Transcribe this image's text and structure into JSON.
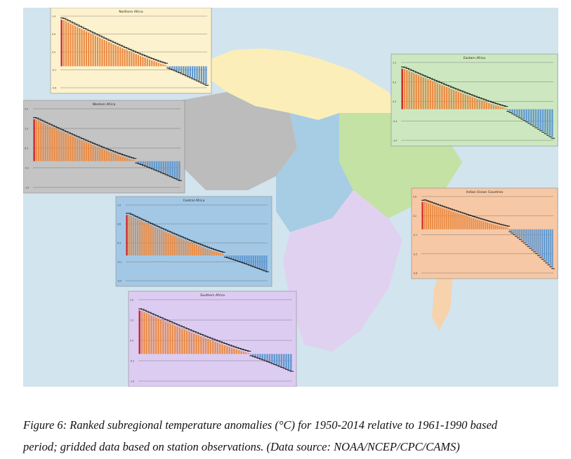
{
  "figure": {
    "background": "#d2e4ee",
    "regions": {
      "northern": "#fbeeb8",
      "western": "#bcbcbc",
      "central": "#a7cde4",
      "eastern": "#c3e2a4",
      "southern": "#e1d1f0",
      "indian": "#f6d3ac"
    }
  },
  "caption": {
    "line1": "Figure 6: Ranked subregional temperature anomalies (°C) for 1950-2014 relative to 1961-1990 based",
    "line2": "period; gridded data based on station observations. (Data source: NOAA/NCEP/CPC/CAMS)"
  },
  "chart_data": [
    {
      "type": "bar",
      "title": "Northern Africa",
      "panel_bg": "#fcf2cd",
      "ylim": [
        -0.6,
        1.4
      ],
      "n": 65,
      "first": 1.3,
      "last": -0.5,
      "n_negative": 18,
      "colors": {
        "record": "#d21e1e",
        "positive": "#ea8c45",
        "negative": "#5f98d0"
      }
    },
    {
      "type": "bar",
      "title": "Western Africa",
      "panel_bg": "#c4c4c4",
      "ylim": [
        -1.0,
        2.0
      ],
      "n": 65,
      "first": 1.6,
      "last": -0.7,
      "n_negative": 20,
      "colors": {
        "record": "#d21e1e",
        "positive": "#ea8c45",
        "negative": "#5f98d0"
      }
    },
    {
      "type": "bar",
      "title": "Central Africa",
      "panel_bg": "#a3c8e6",
      "ylim": [
        -0.5,
        1.0
      ],
      "n": 65,
      "first": 0.8,
      "last": -0.3,
      "n_negative": 20,
      "colors": {
        "record": "#d21e1e",
        "positive": "#ea8c45",
        "negative": "#5f98d0"
      }
    },
    {
      "type": "bar",
      "title": "Eastern Africa",
      "panel_bg": "#cde8c0",
      "ylim": [
        -1.0,
        1.5
      ],
      "n": 65,
      "first": 1.3,
      "last": -0.9,
      "n_negative": 20,
      "colors": {
        "record": "#d21e1e",
        "positive": "#ea8c45",
        "negative": "#5f98d0"
      }
    },
    {
      "type": "bar",
      "title": "Indian Ocean Countries",
      "panel_bg": "#f7c8a5",
      "ylim": [
        -0.8,
        0.6
      ],
      "n": 65,
      "first": 0.5,
      "last": -0.7,
      "n_negative": 22,
      "colors": {
        "record": "#d21e1e",
        "positive": "#ea8c45",
        "negative": "#5f98d0"
      }
    },
    {
      "type": "bar",
      "title": "Southern Africa",
      "panel_bg": "#ddccf2",
      "ylim": [
        -1.0,
        2.0
      ],
      "n": 65,
      "first": 1.6,
      "last": -0.6,
      "n_negative": 18,
      "colors": {
        "record": "#d21e1e",
        "positive": "#ea8c45",
        "negative": "#5f98d0"
      }
    }
  ]
}
